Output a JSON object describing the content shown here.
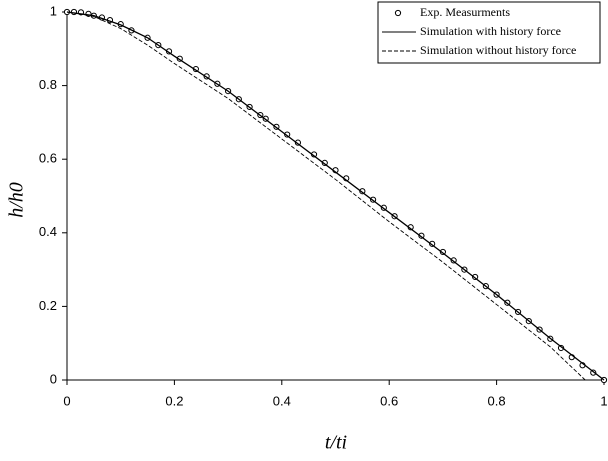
{
  "chart_data": {
    "type": "line",
    "xlabel": "t/ti",
    "ylabel": "h/h0",
    "xlim": [
      0,
      1
    ],
    "ylim": [
      0,
      1
    ],
    "xticks": [
      0,
      0.2,
      0.4,
      0.6,
      0.8,
      1
    ],
    "yticks": [
      0,
      0.2,
      0.4,
      0.6,
      0.8,
      1
    ],
    "grid": false,
    "legend": "upper right",
    "series": [
      {
        "name": "Exp. Measurments",
        "color": "#000000",
        "style": "markers",
        "x": [
          0,
          0.013,
          0.026,
          0.04,
          0.05,
          0.065,
          0.08,
          0.1,
          0.12,
          0.15,
          0.17,
          0.19,
          0.21,
          0.24,
          0.26,
          0.28,
          0.3,
          0.32,
          0.34,
          0.36,
          0.37,
          0.39,
          0.41,
          0.43,
          0.46,
          0.48,
          0.5,
          0.52,
          0.55,
          0.57,
          0.59,
          0.61,
          0.64,
          0.66,
          0.68,
          0.7,
          0.72,
          0.74,
          0.76,
          0.78,
          0.8,
          0.82,
          0.84,
          0.86,
          0.88,
          0.9,
          0.92,
          0.94,
          0.96,
          0.98,
          1
        ],
        "values": [
          1,
          1,
          0.999,
          0.995,
          0.99,
          0.985,
          0.978,
          0.967,
          0.95,
          0.93,
          0.91,
          0.893,
          0.873,
          0.845,
          0.825,
          0.805,
          0.785,
          0.763,
          0.742,
          0.72,
          0.71,
          0.688,
          0.667,
          0.645,
          0.613,
          0.59,
          0.57,
          0.548,
          0.513,
          0.49,
          0.468,
          0.445,
          0.415,
          0.392,
          0.37,
          0.348,
          0.325,
          0.3,
          0.28,
          0.255,
          0.232,
          0.21,
          0.185,
          0.16,
          0.137,
          0.112,
          0.087,
          0.062,
          0.04,
          0.02,
          0
        ]
      },
      {
        "name": "Simulation with history force",
        "color": "#000000",
        "style": "solid",
        "x": [
          0,
          0.05,
          0.1,
          0.15,
          0.2,
          0.3,
          0.4,
          0.5,
          0.6,
          0.7,
          0.8,
          0.9,
          1
        ],
        "values": [
          1,
          0.99,
          0.965,
          0.93,
          0.88,
          0.785,
          0.675,
          0.565,
          0.455,
          0.345,
          0.232,
          0.113,
          0
        ]
      },
      {
        "name": "Simulation without history force",
        "color": "#000000",
        "style": "dashed",
        "x": [
          0,
          0.05,
          0.1,
          0.15,
          0.2,
          0.3,
          0.4,
          0.5,
          0.6,
          0.7,
          0.8,
          0.9,
          0.965
        ],
        "values": [
          1,
          0.988,
          0.955,
          0.91,
          0.86,
          0.765,
          0.655,
          0.545,
          0.43,
          0.32,
          0.205,
          0.09,
          0
        ]
      }
    ]
  }
}
